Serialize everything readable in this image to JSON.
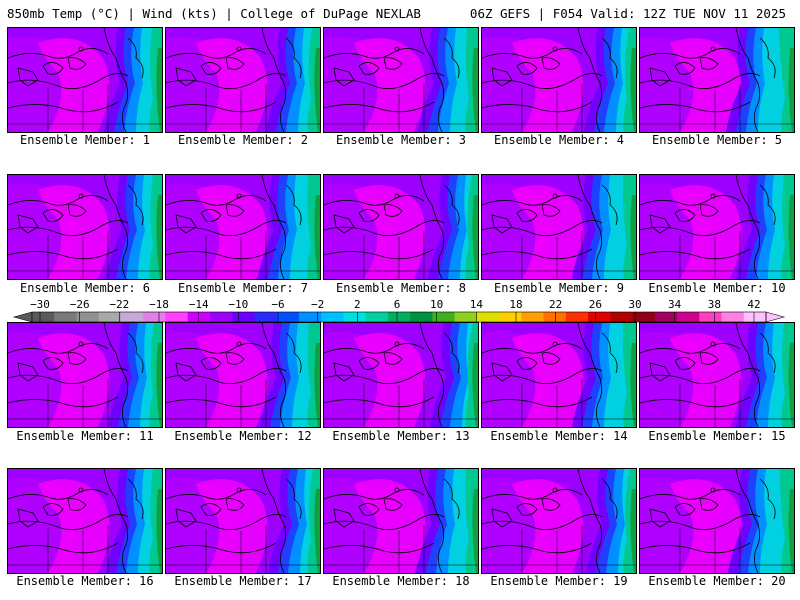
{
  "header": {
    "left": "850mb Temp (°C) | Wind (kts) | College of DuPage NEXLAB",
    "right": "06Z GEFS | F054 Valid: 12Z TUE NOV 11 2025"
  },
  "members": [
    "Ensemble Member: 1",
    "Ensemble Member: 2",
    "Ensemble Member: 3",
    "Ensemble Member: 4",
    "Ensemble Member: 5",
    "Ensemble Member: 6",
    "Ensemble Member: 7",
    "Ensemble Member: 8",
    "Ensemble Member: 9",
    "Ensemble Member: 10",
    "Ensemble Member: 11",
    "Ensemble Member: 12",
    "Ensemble Member: 13",
    "Ensemble Member: 14",
    "Ensemble Member: 15",
    "Ensemble Member: 16",
    "Ensemble Member: 17",
    "Ensemble Member: 18",
    "Ensemble Member: 19",
    "Ensemble Member: 20"
  ],
  "colorbar": {
    "labels": [
      "-30",
      "-26",
      "-22",
      "-18",
      "-14",
      "-10",
      "-6",
      "-2",
      "2",
      "6",
      "10",
      "14",
      "18",
      "22",
      "26",
      "30",
      "34",
      "38",
      "42"
    ],
    "colors": [
      "#5a5a5a",
      "#7a7a7a",
      "#909090",
      "#a8a8a8",
      "#c8a8d8",
      "#e080e8",
      "#ff40ff",
      "#d000ff",
      "#9d00ff",
      "#6a00ff",
      "#2a2aff",
      "#0050ff",
      "#0090ff",
      "#00c0ff",
      "#00e0e0",
      "#00d0a0",
      "#00b060",
      "#009040",
      "#40b020",
      "#90d020",
      "#e0e000",
      "#ffd000",
      "#ffa000",
      "#ff7000",
      "#ff3000",
      "#e00000",
      "#b00000",
      "#900010",
      "#a00060",
      "#d00090",
      "#ff40c0",
      "#ff80e0",
      "#ffc0ff"
    ]
  },
  "colors": {
    "cold": "#9d00ff",
    "magenta": "#ff00ff",
    "violet": "#c000ff",
    "purple": "#7000ff",
    "blue": "#2040ff",
    "sky": "#0090ff",
    "cyan": "#00d0e0",
    "teal": "#00c890",
    "green": "#10a040"
  }
}
